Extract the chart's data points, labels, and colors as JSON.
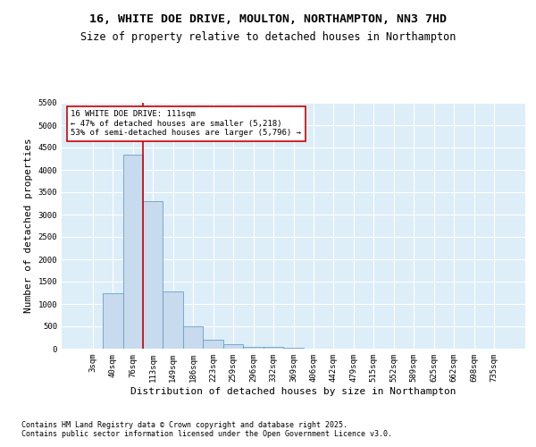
{
  "title_line1": "16, WHITE DOE DRIVE, MOULTON, NORTHAMPTON, NN3 7HD",
  "title_line2": "Size of property relative to detached houses in Northampton",
  "xlabel": "Distribution of detached houses by size in Northampton",
  "ylabel": "Number of detached properties",
  "categories": [
    "3sqm",
    "40sqm",
    "76sqm",
    "113sqm",
    "149sqm",
    "186sqm",
    "223sqm",
    "259sqm",
    "296sqm",
    "332sqm",
    "369sqm",
    "406sqm",
    "442sqm",
    "479sqm",
    "515sqm",
    "552sqm",
    "589sqm",
    "625sqm",
    "662sqm",
    "698sqm",
    "735sqm"
  ],
  "values": [
    0,
    1250,
    4350,
    3300,
    1280,
    500,
    200,
    100,
    50,
    40,
    30,
    0,
    0,
    0,
    0,
    0,
    0,
    0,
    0,
    0,
    0
  ],
  "bar_color": "#c8daed",
  "bar_edge_color": "#6b9fc8",
  "vline_x_index": 2.5,
  "vline_color": "#cc0000",
  "annotation_text": "16 WHITE DOE DRIVE: 111sqm\n← 47% of detached houses are smaller (5,218)\n53% of semi-detached houses are larger (5,796) →",
  "annotation_box_color": "#ffffff",
  "annotation_box_edge_color": "#cc0000",
  "ylim": [
    0,
    5500
  ],
  "yticks": [
    0,
    500,
    1000,
    1500,
    2000,
    2500,
    3000,
    3500,
    4000,
    4500,
    5000,
    5500
  ],
  "background_color": "#ddeef8",
  "grid_color": "#ffffff",
  "footer_line1": "Contains HM Land Registry data © Crown copyright and database right 2025.",
  "footer_line2": "Contains public sector information licensed under the Open Government Licence v3.0.",
  "title_fontsize": 9.5,
  "subtitle_fontsize": 8.5,
  "tick_fontsize": 6.5,
  "ylabel_fontsize": 8,
  "xlabel_fontsize": 8,
  "footer_fontsize": 6
}
